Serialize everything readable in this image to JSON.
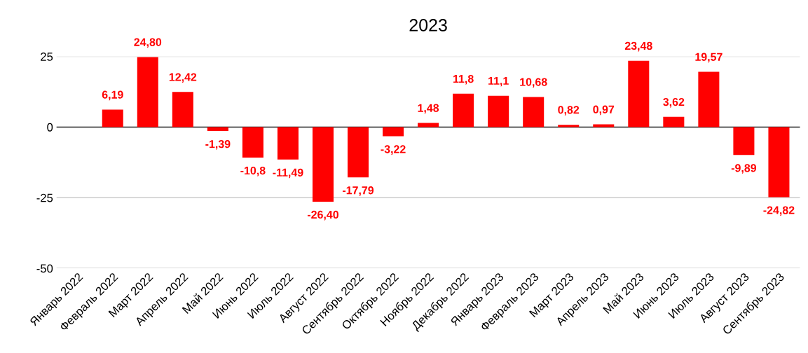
{
  "chart_data": {
    "type": "bar",
    "title": "2023",
    "categories": [
      "Январь 2022",
      "Февраль 2022",
      "Март 2022",
      "Апрель 2022",
      "Май 2022",
      "Июнь 2022",
      "Июль 2022",
      "Август 2022",
      "Сентябрь 2022",
      "Октябрь 2022",
      "Ноябрь 2022",
      "Декабрь 2022",
      "Январь 2023",
      "Февраль 2023",
      "Март 2023",
      "Апрель 2023",
      "Май 2023",
      "Июнь 2023",
      "Июль 2023",
      "Август 2023",
      "Сентябрь 2023"
    ],
    "values": [
      null,
      6.19,
      24.8,
      12.42,
      -1.39,
      -10.8,
      -11.49,
      -26.4,
      -17.79,
      -3.22,
      1.48,
      11.8,
      11.1,
      10.68,
      0.82,
      0.97,
      23.48,
      3.62,
      19.57,
      -9.89,
      -24.82
    ],
    "value_labels": [
      null,
      "6,19",
      "24,80",
      "12,42",
      "-1,39",
      "-10,8",
      "-11,49",
      "-26,40",
      "-17,79",
      "-3,22",
      "1,48",
      "11,8",
      "11,1",
      "10,68",
      "0,82",
      "0,97",
      "23,48",
      "3,62",
      "19,57",
      "-9,89",
      "-24,82"
    ],
    "color": "#ff0000",
    "ylim": [
      -50,
      25
    ],
    "yticks": [
      -50,
      -25,
      0,
      25
    ],
    "grid": "y",
    "ref_lines": [
      {
        "axis": "y",
        "value": 0,
        "color": "#333333"
      }
    ]
  }
}
